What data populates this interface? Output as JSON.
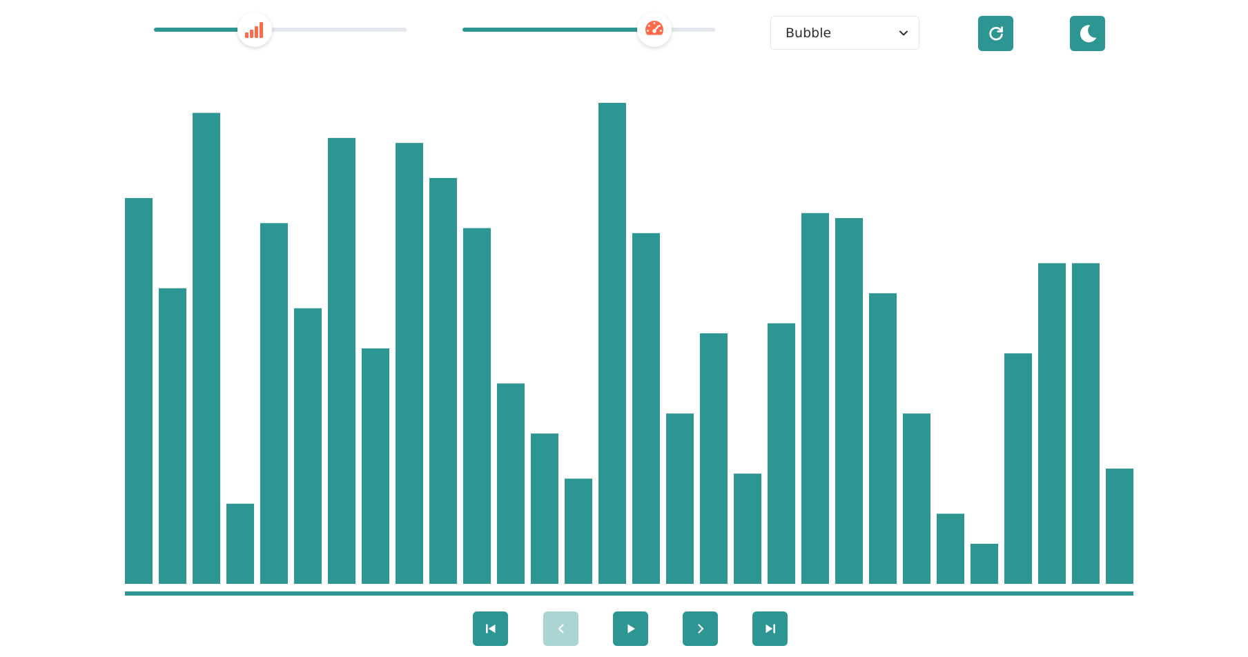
{
  "controls": {
    "size_slider": {
      "value_fraction": 0.4,
      "icon": "signal-bars-icon",
      "thumb_color": "#ff6b4a"
    },
    "speed_slider": {
      "value_fraction": 0.76,
      "icon": "speedometer-icon",
      "thumb_color": "#ff6b4a"
    },
    "algorithm_select": {
      "selected": "Bubble"
    },
    "reset_button": {
      "icon": "refresh-icon"
    },
    "theme_button": {
      "icon": "moon-icon"
    }
  },
  "playback": {
    "first_button": {
      "icon": "skip-back-icon",
      "enabled": true
    },
    "prev_button": {
      "icon": "chevron-left-icon",
      "enabled": false
    },
    "play_button": {
      "icon": "play-icon",
      "enabled": true
    },
    "next_button": {
      "icon": "chevron-right-icon",
      "enabled": true
    },
    "last_button": {
      "icon": "skip-forward-icon",
      "enabled": true
    }
  },
  "colors": {
    "accent": "#2e9692",
    "accent_disabled": "#abd5d3",
    "thumb_icon": "#ff6b4a",
    "track": "#e4e8ee"
  },
  "chart_data": {
    "type": "bar",
    "values": [
      77,
      59,
      94,
      16,
      72,
      55,
      89,
      47,
      88,
      81,
      71,
      40,
      30,
      21,
      96,
      70,
      34,
      50,
      22,
      52,
      74,
      73,
      58,
      34,
      14,
      8,
      46,
      64,
      64,
      23
    ],
    "ylim": [
      0,
      100
    ]
  }
}
